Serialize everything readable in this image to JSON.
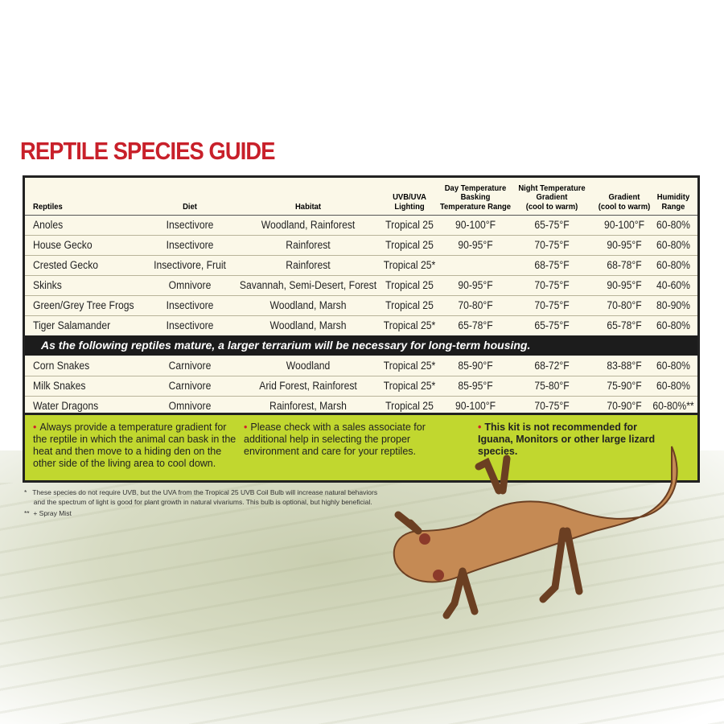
{
  "title": "REPTILE SPECIES GUIDE",
  "headers": [
    "Reptiles",
    "Diet",
    "Habitat",
    "UVB/UVA\nLighting",
    "Day Temperature\nBasking\nTemperature Range",
    "Night Temperature\nGradient\n(cool to warm)",
    "Gradient\n(cool to warm)",
    "Humidity\nRange"
  ],
  "rows": [
    [
      "Anoles",
      "Insectivore",
      "Woodland, Rainforest",
      "Tropical 25",
      "90-100°F",
      "65-75°F",
      "90-100°F",
      "60-80%"
    ],
    [
      "House Gecko",
      "Insectivore",
      "Rainforest",
      "Tropical 25",
      "90-95°F",
      "70-75°F",
      "90-95°F",
      "60-80%"
    ],
    [
      "Crested Gecko",
      "Insectivore, Fruit",
      "Rainforest",
      "Tropical 25*",
      "",
      "68-75°F",
      "68-78°F",
      "60-80%"
    ],
    [
      "Skinks",
      "Omnivore",
      "Savannah, Semi-Desert, Forest",
      "Tropical 25",
      "90-95°F",
      "70-75°F",
      "90-95°F",
      "40-60%"
    ],
    [
      "Green/Grey Tree Frogs",
      "Insectivore",
      "Woodland, Marsh",
      "Tropical 25",
      "70-80°F",
      "70-75°F",
      "70-80°F",
      "80-90%"
    ],
    [
      "Tiger Salamander",
      "Insectivore",
      "Woodland, Marsh",
      "Tropical 25*",
      "65-78°F",
      "65-75°F",
      "65-78°F",
      "60-80%"
    ]
  ],
  "banner": "As the following reptiles mature, a larger terrarium will be necessary for long-term housing.",
  "rows2": [
    [
      "Corn Snakes",
      "Carnivore",
      "Woodland",
      "Tropical 25*",
      "85-90°F",
      "68-72°F",
      "83-88°F",
      "60-80%"
    ],
    [
      "Milk Snakes",
      "Carnivore",
      "Arid Forest, Rainforest",
      "Tropical 25*",
      "85-95°F",
      "75-80°F",
      "75-90°F",
      "60-80%"
    ],
    [
      "Water Dragons",
      "Omnivore",
      "Rainforest, Marsh",
      "Tropical 25",
      "90-100°F",
      "70-75°F",
      "70-90°F",
      "60-80%**"
    ]
  ],
  "notes": [
    "Always provide a temperature gradient for the reptile in which the animal can bask in the heat and then move to a hiding den on the other side of the living area to cool down.",
    "Please check with a sales associate for additional help in selecting the proper environment and care for your reptiles.",
    "This kit is not recommended for Iguana, Monitors or other large lizard species."
  ],
  "bullet": "•",
  "footnotes": [
    "*   These species do not require UVB, but the UVA from the Tropical 25 UVB Coil Bulb will increase natural behaviors",
    "     and the spectrum of light is good for plant growth in natural vivariums. This bulb is optional, but highly beneficial.",
    "**  + Spray Mist"
  ],
  "colors": {
    "title": "#c8202a",
    "notes_bg": "#c1d72f",
    "banner_bg": "#1c1c1c"
  }
}
